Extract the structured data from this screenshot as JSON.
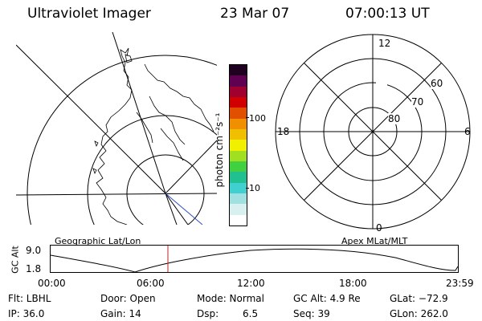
{
  "header": {
    "title": "Ultraviolet Imager",
    "date": "23 Mar 07",
    "time": "07:00:13 UT"
  },
  "colorbar": {
    "unit_label": "photon cm⁻²s⁻¹",
    "ticks": [
      {
        "label": "100",
        "value": 100
      },
      {
        "label": "10",
        "value": 10
      }
    ],
    "colors": [
      "#ffffff",
      "#d8f0f0",
      "#a0e0e0",
      "#40d0d0",
      "#20c090",
      "#40d040",
      "#a0e020",
      "#f0f000",
      "#f0c000",
      "#f09000",
      "#e05000",
      "#d00000",
      "#a00030",
      "#600050",
      "#200020"
    ]
  },
  "polar_plot": {
    "lat_labels": [
      "60",
      "70",
      "80"
    ],
    "mlt_labels": [
      "12",
      "18",
      "6",
      "0"
    ]
  },
  "orbit_panel": {
    "ylabel": "GC Alt",
    "y_ticks": [
      "9.0",
      "1.8"
    ],
    "left_label": "Geographic Lat/Lon",
    "right_label": "Apex MLat/MLT",
    "x_ticks": [
      "00:00",
      "06:00",
      "12:00",
      "18:00",
      "23:59"
    ],
    "current_time_hours": 7.0
  },
  "info": {
    "filter": "Flt: LBHL",
    "ip": "IP: 36.0",
    "door": "Door: Open",
    "gain": "Gain: 14",
    "mode": "Mode: Normal",
    "dsp_label": "Dsp:",
    "dsp_value": "6.5",
    "gc_alt": "GC Alt: 4.9 Re",
    "seq": "Seq: 39",
    "glat": "GLat: −72.9",
    "glon": "GLon: 262.0"
  }
}
